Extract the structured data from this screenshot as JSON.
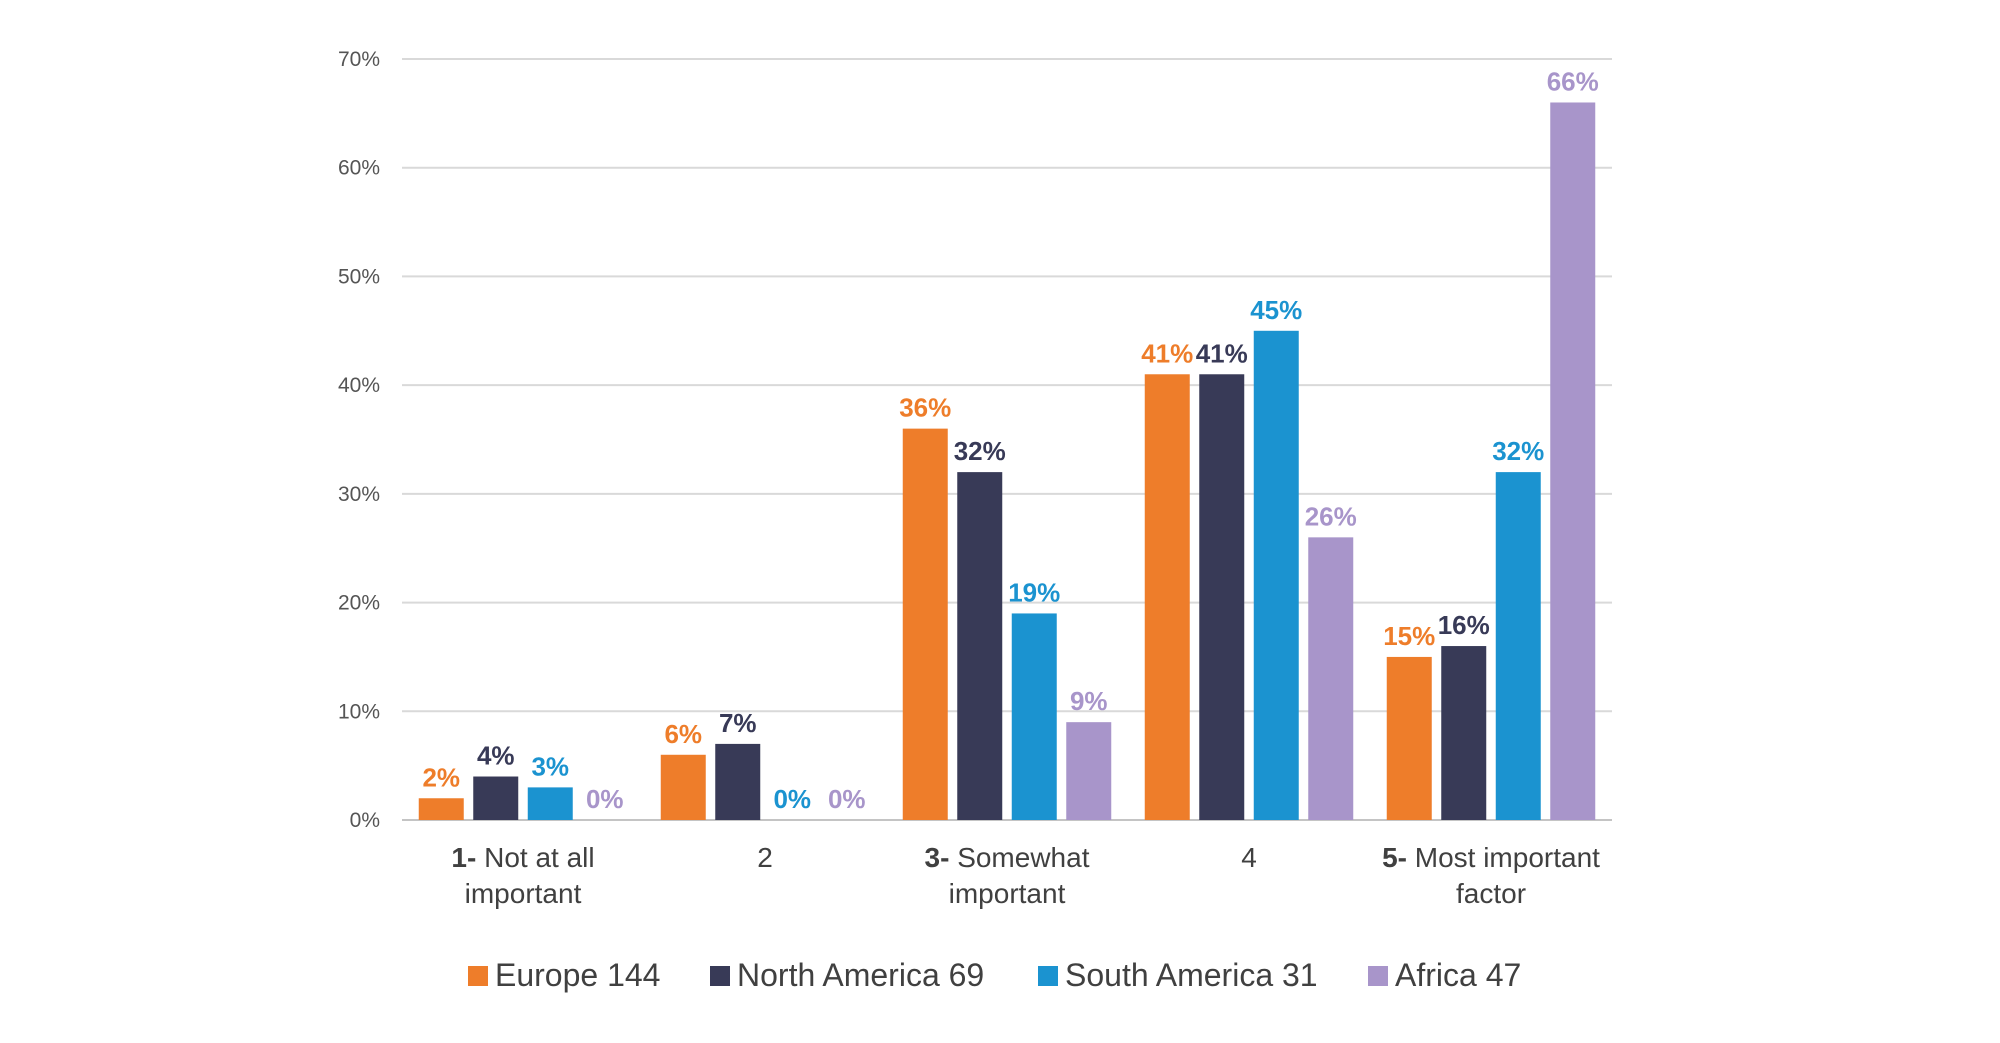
{
  "chart_data": {
    "type": "bar",
    "title": "",
    "xlabel": "",
    "ylabel": "",
    "ylim": [
      0,
      70
    ],
    "yticks": [
      0,
      10,
      20,
      30,
      40,
      50,
      60,
      70
    ],
    "ytick_labels": [
      "0%",
      "10%",
      "20%",
      "30%",
      "40%",
      "50%",
      "60%",
      "70%"
    ],
    "grid": true,
    "legend_position": "bottom",
    "categories": [
      {
        "num": "1-",
        "lines": [
          "Not at all",
          "important"
        ]
      },
      {
        "num": "",
        "lines": [
          "2"
        ]
      },
      {
        "num": "3-",
        "lines": [
          "Somewhat",
          "important"
        ]
      },
      {
        "num": "",
        "lines": [
          "4"
        ]
      },
      {
        "num": "5-",
        "lines": [
          "Most important",
          "factor"
        ]
      }
    ],
    "series": [
      {
        "name": "Europe",
        "count": "144",
        "color": "#EE7D2A",
        "values": [
          2,
          6,
          36,
          41,
          15
        ],
        "labels": [
          "2%",
          "6%",
          "36%",
          "41%",
          "15%"
        ]
      },
      {
        "name": "North America",
        "count": "69",
        "color": "#383A57",
        "values": [
          4,
          7,
          32,
          41,
          16
        ],
        "labels": [
          "4%",
          "7%",
          "32%",
          "41%",
          "16%"
        ]
      },
      {
        "name": "South America",
        "count": "31",
        "color": "#1B93D0",
        "values": [
          3,
          0,
          19,
          45,
          32
        ],
        "labels": [
          "3%",
          "0%",
          "19%",
          "45%",
          "32%"
        ]
      },
      {
        "name": "Africa",
        "count": "47",
        "color": "#A895CA",
        "values": [
          0,
          0,
          9,
          26,
          66
        ],
        "labels": [
          "0%",
          "0%",
          "9%",
          "26%",
          "66%"
        ]
      }
    ]
  }
}
